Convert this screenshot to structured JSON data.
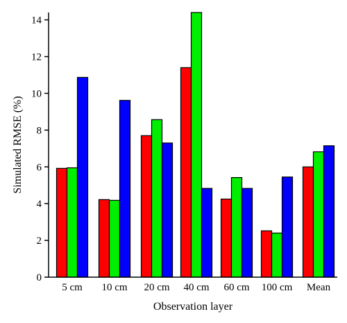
{
  "chart_data": {
    "type": "bar",
    "categories": [
      "5 cm",
      "10 cm",
      "20 cm",
      "40 cm",
      "60 cm",
      "100 cm",
      "Mean"
    ],
    "series": [
      {
        "color": "#ff0000",
        "values": [
          5.92,
          4.22,
          7.7,
          11.4,
          4.25,
          2.52,
          6.0
        ]
      },
      {
        "color": "#00ee00",
        "values": [
          5.95,
          4.18,
          8.57,
          14.4,
          5.42,
          2.4,
          6.82
        ]
      },
      {
        "color": "#0000ff",
        "values": [
          10.87,
          9.62,
          7.3,
          4.83,
          4.83,
          5.45,
          7.15
        ]
      }
    ],
    "xlabel": "Observation layer",
    "ylabel": "Simulated RMSE (%)",
    "ylim": [
      0,
      14.4
    ],
    "yticks": [
      "0",
      "2",
      "4",
      "6",
      "8",
      "10",
      "12",
      "14"
    ],
    "grid": false,
    "legend": "none"
  }
}
